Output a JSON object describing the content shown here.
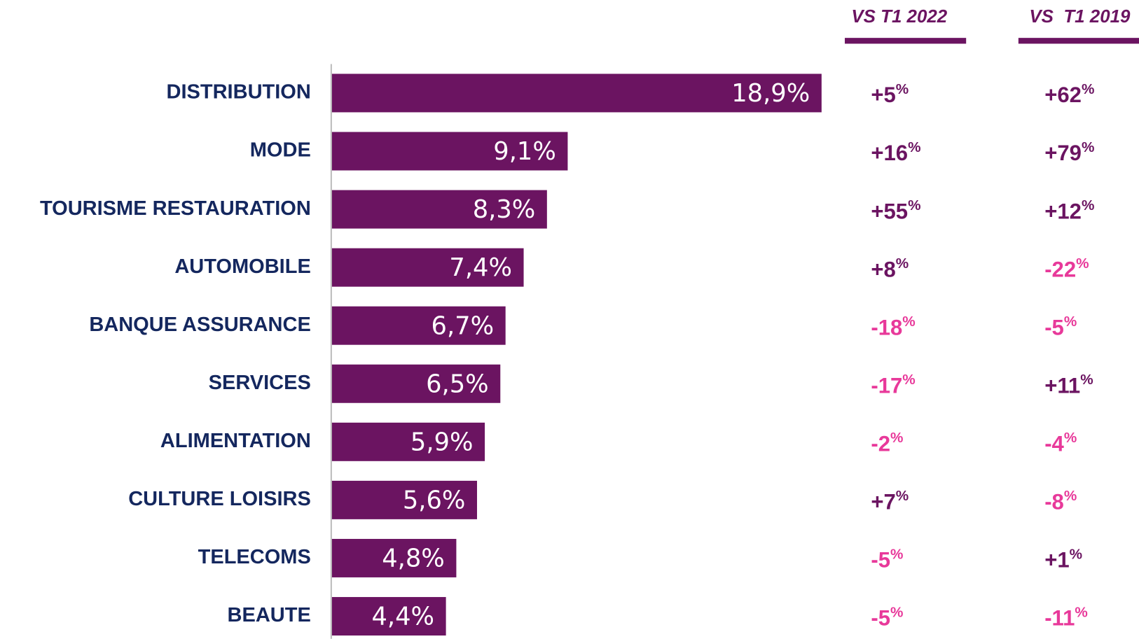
{
  "chart_data": {
    "type": "bar",
    "orientation": "horizontal",
    "categories": [
      "DISTRIBUTION",
      "MODE",
      "TOURISME RESTAURATION",
      "AUTOMOBILE",
      "BANQUE ASSURANCE",
      "SERVICES",
      "ALIMENTATION",
      "CULTURE LOISIRS",
      "TELECOMS",
      "BEAUTE"
    ],
    "values": [
      18.9,
      9.1,
      8.3,
      7.4,
      6.7,
      6.5,
      5.9,
      5.6,
      4.8,
      4.4
    ],
    "value_labels": [
      "18,9%",
      "9,1%",
      "8,3%",
      "7,4%",
      "6,7%",
      "6,5%",
      "5,9%",
      "5,6%",
      "4,8%",
      "4,4%"
    ],
    "color": "#6b1461",
    "comparisons": [
      {
        "name": "VS T1 2022",
        "values": [
          5,
          16,
          55,
          8,
          -18,
          -17,
          -2,
          7,
          -5,
          -5
        ],
        "value_labels": [
          "+5%",
          "+16%",
          "+55%",
          "+8%",
          "-18%",
          "-17%",
          "-2%",
          "+7%",
          "-5%",
          "-5%"
        ]
      },
      {
        "name": "VS  T1 2019",
        "values": [
          62,
          79,
          12,
          -22,
          -5,
          11,
          -4,
          -8,
          1,
          -11
        ],
        "value_labels": [
          "+62%",
          "+79%",
          "+12%",
          "-22%",
          "-5%",
          "+11%",
          "-4%",
          "-8%",
          "+1%",
          "-11%"
        ]
      }
    ],
    "positive_color": "#6b1461",
    "negative_color": "#e8399a"
  }
}
